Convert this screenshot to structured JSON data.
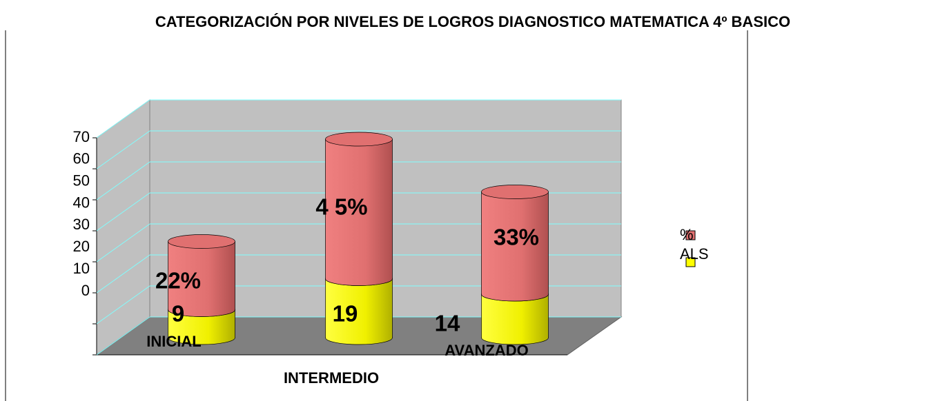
{
  "chart_data": {
    "type": "bar3d-stacked-cylinder",
    "title": "CATEGORIZACIÓN POR NIVELES DE LOGROS DIAGNOSTICO MATEMATICA 4º BASICO",
    "categories": [
      "INICIAL",
      "INTERMEDIO",
      "AVANZADO"
    ],
    "series": [
      {
        "name": "ALS",
        "color": "#ffff00",
        "values": [
          9,
          19,
          14
        ]
      },
      {
        "name": "%",
        "color": "#e07070",
        "values": [
          22,
          45,
          33
        ],
        "value_labels": [
          "22%",
          "4 5%",
          "33%"
        ]
      }
    ],
    "ylim": [
      0,
      70
    ],
    "yticks": [
      0,
      10,
      20,
      30,
      40,
      50,
      60,
      70
    ],
    "grid": true,
    "legend": "right"
  }
}
